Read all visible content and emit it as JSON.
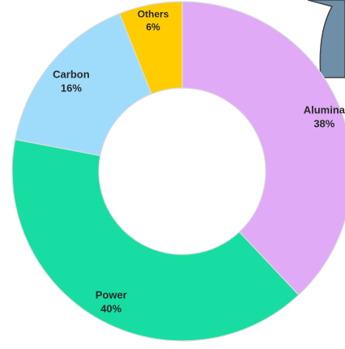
{
  "chart_data": {
    "type": "pie",
    "style": "donut",
    "slices": [
      {
        "label": "Alumina",
        "value": 38,
        "pct_text": "38%",
        "color": "#e0aaf6"
      },
      {
        "label": "Power",
        "value": 40,
        "pct_text": "40%",
        "color": "#17dda3"
      },
      {
        "label": "Carbon",
        "value": 16,
        "pct_text": "16%",
        "color": "#9fdcfb"
      },
      {
        "label": "Others",
        "value": 6,
        "pct_text": "6%",
        "color": "#ffcc00"
      }
    ],
    "start": "top",
    "direction": "clockwise",
    "legend": "none",
    "partial_shape_color": "#6f8ea8"
  }
}
